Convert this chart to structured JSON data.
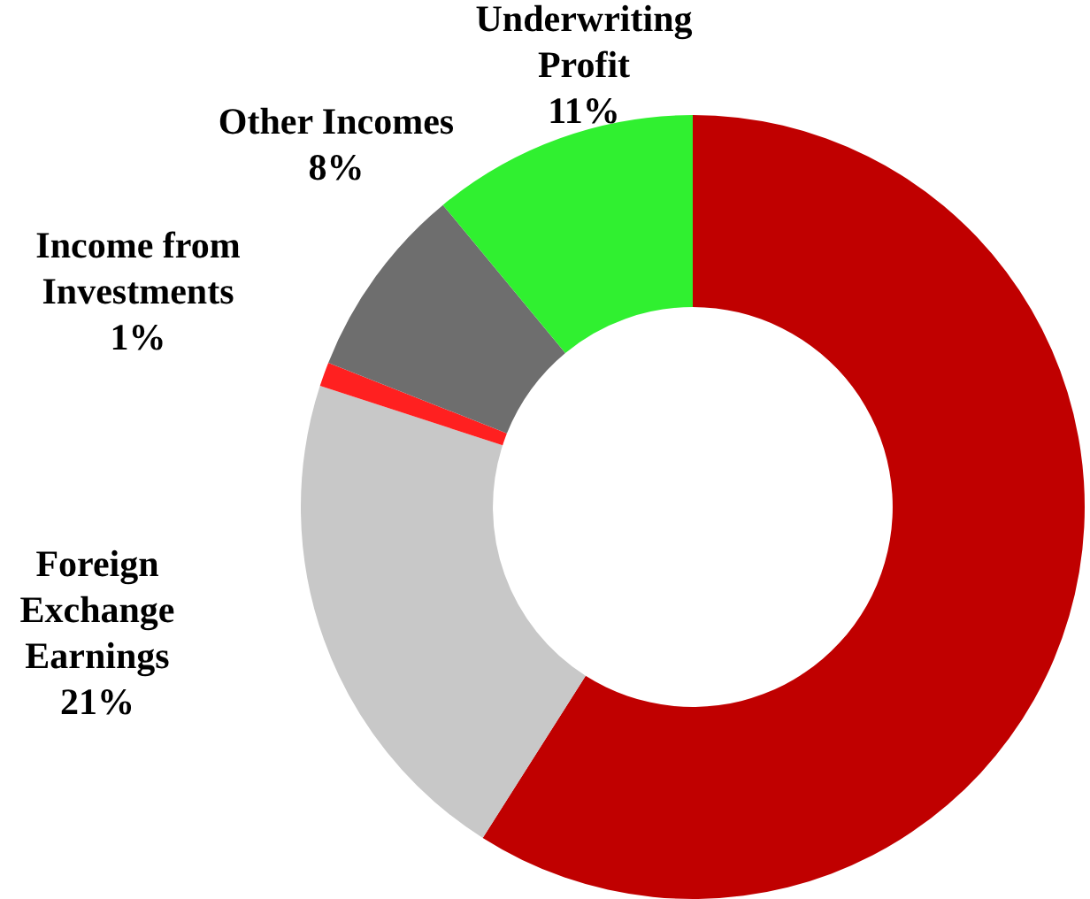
{
  "chart_data": {
    "type": "donut",
    "categories": [
      null,
      "Foreign Exchange Earnings",
      "Income from Investments",
      "Other Incomes",
      "Underwriting Profit"
    ],
    "values": [
      59,
      21,
      1,
      8,
      11
    ],
    "colors": [
      "#c00000",
      "#c8c8c8",
      "#ff2020",
      "#6e6e6e",
      "#30f030"
    ],
    "value_labels": [
      null,
      "21%",
      "1%",
      "8%",
      "11%"
    ],
    "legend": false
  }
}
